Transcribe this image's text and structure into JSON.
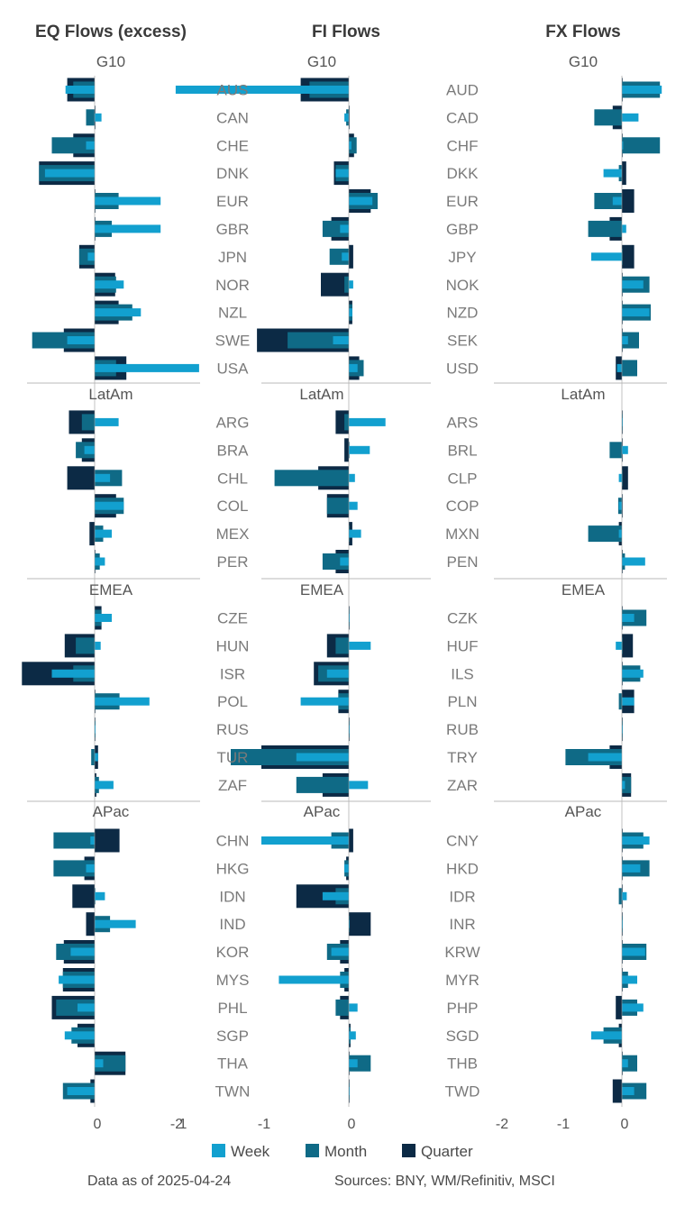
{
  "colors": {
    "week": "#12a0cf",
    "month": "#0f6a86",
    "quarter": "#0c2a45",
    "sep": "#b8b8b8",
    "text": "#555555"
  },
  "panels": [
    {
      "title": "EQ Flows (excess)",
      "xlim": [
        -0.85,
        1.2
      ],
      "ticks": [
        0,
        1
      ]
    },
    {
      "title": "FI Flows",
      "xlim": [
        -2.0,
        0.4
      ],
      "ticks": [
        -2,
        -1,
        0
      ]
    },
    {
      "title": "FX Flows",
      "xlim": [
        -2.0,
        0.65
      ],
      "ticks": [
        -2,
        -1,
        0
      ]
    }
  ],
  "sections": [
    {
      "name": "G10",
      "eq_labels": [
        "AUS",
        "CAN",
        "CHE",
        "DNK",
        "EUR",
        "GBR",
        "JPN",
        "NOR",
        "NZL",
        "SWE",
        "USA"
      ],
      "fx_labels": [
        "AUD",
        "CAD",
        "CHF",
        "DKK",
        "EUR",
        "GBP",
        "JPY",
        "NOK",
        "NZD",
        "SEK",
        "USD"
      ]
    },
    {
      "name": "LatAm",
      "eq_labels": [
        "ARG",
        "BRA",
        "CHL",
        "COL",
        "MEX",
        "PER"
      ],
      "fx_labels": [
        "ARS",
        "BRL",
        "CLP",
        "COP",
        "MXN",
        "PEN"
      ]
    },
    {
      "name": "EMEA",
      "eq_labels": [
        "CZE",
        "HUN",
        "ISR",
        "POL",
        "RUS",
        "TUR",
        "ZAF"
      ],
      "fx_labels": [
        "CZK",
        "HUF",
        "ILS",
        "PLN",
        "RUB",
        "TRY",
        "ZAR"
      ]
    },
    {
      "name": "APac",
      "eq_labels": [
        "CHN",
        "HKG",
        "IDN",
        "IND",
        "KOR",
        "MYS",
        "PHL",
        "SGP",
        "THA",
        "TWN"
      ],
      "fx_labels": [
        "CNY",
        "HKD",
        "IDR",
        "INR",
        "KRW",
        "MYR",
        "PHP",
        "SGD",
        "THB",
        "TWD"
      ]
    }
  ],
  "legend": [
    {
      "key": "week",
      "label": "Week"
    },
    {
      "key": "month",
      "label": "Month"
    },
    {
      "key": "quarter",
      "label": "Quarter"
    }
  ],
  "footer": {
    "date": "Data as of 2025-04-24",
    "sources": "Sources:  BNY, WM/Refinitiv, MSCI"
  },
  "chart_data": [
    {
      "type": "bar",
      "orientation": "horizontal",
      "title": "EQ Flows (excess)",
      "xlim": [
        -0.85,
        1.2
      ],
      "series_names": [
        "Week",
        "Month",
        "Quarter"
      ],
      "groups": [
        {
          "name": "G10",
          "rows": [
            {
              "label": "AUS",
              "week": -0.34,
              "month": -0.25,
              "quarter": -0.32
            },
            {
              "label": "CAN",
              "week": 0.08,
              "month": -0.1,
              "quarter": 0.0
            },
            {
              "label": "CHE",
              "week": -0.1,
              "month": -0.5,
              "quarter": -0.25
            },
            {
              "label": "DNK",
              "week": -0.58,
              "month": -0.65,
              "quarter": -0.65
            },
            {
              "label": "EUR",
              "week": 0.77,
              "month": 0.28,
              "quarter": 0.0
            },
            {
              "label": "GBR",
              "week": 0.77,
              "month": 0.2,
              "quarter": 0.0
            },
            {
              "label": "JPN",
              "week": -0.08,
              "month": -0.18,
              "quarter": -0.18
            },
            {
              "label": "NOR",
              "week": 0.34,
              "month": 0.25,
              "quarter": 0.24
            },
            {
              "label": "NZL",
              "week": 0.54,
              "month": 0.44,
              "quarter": 0.28
            },
            {
              "label": "SWE",
              "week": -0.32,
              "month": -0.73,
              "quarter": -0.36
            },
            {
              "label": "USA",
              "week": 1.22,
              "month": 0.25,
              "quarter": 0.37
            }
          ]
        },
        {
          "name": "LatAm",
          "rows": [
            {
              "label": "ARG",
              "week": 0.28,
              "month": -0.15,
              "quarter": -0.3
            },
            {
              "label": "BRA",
              "week": -0.12,
              "month": -0.22,
              "quarter": -0.15
            },
            {
              "label": "CHL",
              "week": 0.18,
              "month": 0.32,
              "quarter": -0.32
            },
            {
              "label": "COL",
              "week": 0.34,
              "month": 0.34,
              "quarter": 0.25
            },
            {
              "label": "MEX",
              "week": 0.2,
              "month": 0.1,
              "quarter": -0.06
            },
            {
              "label": "PER",
              "week": 0.12,
              "month": 0.06,
              "quarter": 0.0
            }
          ]
        },
        {
          "name": "EMEA",
          "rows": [
            {
              "label": "CZE",
              "week": 0.2,
              "month": 0.08,
              "quarter": 0.08
            },
            {
              "label": "HUN",
              "week": 0.07,
              "month": -0.22,
              "quarter": -0.35
            },
            {
              "label": "ISR",
              "week": -0.5,
              "month": -0.25,
              "quarter": -0.85
            },
            {
              "label": "POL",
              "week": 0.64,
              "month": 0.29,
              "quarter": 0.0
            },
            {
              "label": "RUS",
              "week": 0.01,
              "month": 0.01,
              "quarter": 0.0
            },
            {
              "label": "TUR",
              "week": 0.04,
              "month": -0.04,
              "quarter": 0.04
            },
            {
              "label": "ZAF",
              "week": 0.22,
              "month": 0.05,
              "quarter": 0.02
            }
          ]
        },
        {
          "name": "APac",
          "rows": [
            {
              "label": "CHN",
              "week": -0.05,
              "month": -0.48,
              "quarter": 0.29
            },
            {
              "label": "HKG",
              "week": -0.1,
              "month": -0.48,
              "quarter": -0.12
            },
            {
              "label": "IDN",
              "week": 0.12,
              "month": 0.0,
              "quarter": -0.26
            },
            {
              "label": "IND",
              "week": 0.48,
              "month": 0.18,
              "quarter": -0.1
            },
            {
              "label": "KOR",
              "week": -0.28,
              "month": -0.45,
              "quarter": -0.36
            },
            {
              "label": "MYS",
              "week": -0.42,
              "month": -0.37,
              "quarter": -0.37
            },
            {
              "label": "PHL",
              "week": -0.2,
              "month": -0.45,
              "quarter": -0.5
            },
            {
              "label": "SGP",
              "week": -0.35,
              "month": -0.27,
              "quarter": -0.2
            },
            {
              "label": "THA",
              "week": 0.1,
              "month": 0.36,
              "quarter": 0.36
            },
            {
              "label": "TWN",
              "week": -0.32,
              "month": -0.37,
              "quarter": -0.05
            }
          ]
        }
      ]
    },
    {
      "type": "bar",
      "orientation": "horizontal",
      "title": "FI Flows",
      "xlim": [
        -2.0,
        0.4
      ],
      "series_names": [
        "Week",
        "Month",
        "Quarter"
      ],
      "groups": [
        {
          "name": "G10",
          "rows": [
            {
              "label": "AUS",
              "week": -1.98,
              "month": -0.45,
              "quarter": -0.55
            },
            {
              "label": "CAN",
              "week": -0.05,
              "month": -0.03,
              "quarter": 0.0
            },
            {
              "label": "CHE",
              "week": 0.03,
              "month": 0.09,
              "quarter": 0.06
            },
            {
              "label": "DNK",
              "week": -0.15,
              "month": -0.15,
              "quarter": -0.17
            },
            {
              "label": "EUR",
              "week": 0.27,
              "month": 0.33,
              "quarter": 0.25
            },
            {
              "label": "GBR",
              "week": -0.1,
              "month": -0.3,
              "quarter": -0.2
            },
            {
              "label": "JPN",
              "week": -0.08,
              "month": -0.22,
              "quarter": 0.05
            },
            {
              "label": "NOR",
              "week": 0.05,
              "month": -0.05,
              "quarter": -0.32
            },
            {
              "label": "NZL",
              "week": 0.04,
              "month": 0.04,
              "quarter": 0.04
            },
            {
              "label": "SWE",
              "week": -0.18,
              "month": -0.7,
              "quarter": -1.05
            },
            {
              "label": "USA",
              "week": 0.1,
              "month": 0.17,
              "quarter": 0.12
            }
          ]
        },
        {
          "name": "LatAm",
          "rows": [
            {
              "label": "ARG",
              "week": 0.42,
              "month": -0.05,
              "quarter": -0.15
            },
            {
              "label": "BRA",
              "week": 0.24,
              "month": 0.0,
              "quarter": -0.05
            },
            {
              "label": "CHL",
              "week": 0.07,
              "month": -0.85,
              "quarter": -0.35
            },
            {
              "label": "COL",
              "week": 0.1,
              "month": -0.25,
              "quarter": -0.25
            },
            {
              "label": "MEX",
              "week": 0.14,
              "month": 0.0,
              "quarter": 0.04
            },
            {
              "label": "PER",
              "week": -0.1,
              "month": -0.3,
              "quarter": -0.15
            }
          ]
        },
        {
          "name": "EMEA",
          "rows": [
            {
              "label": "CZE",
              "week": 0.0,
              "month": 0.0,
              "quarter": 0.0
            },
            {
              "label": "HUN",
              "week": 0.25,
              "month": -0.15,
              "quarter": -0.25
            },
            {
              "label": "ISR",
              "week": -0.25,
              "month": -0.35,
              "quarter": -0.4
            },
            {
              "label": "POL",
              "week": -0.55,
              "month": -0.12,
              "quarter": -0.12
            },
            {
              "label": "RUS",
              "week": 0.0,
              "month": 0.0,
              "quarter": 0.0
            },
            {
              "label": "TUR",
              "week": -0.6,
              "month": -1.35,
              "quarter": -1.0
            },
            {
              "label": "ZAF",
              "week": 0.22,
              "month": -0.6,
              "quarter": -0.3
            }
          ]
        },
        {
          "name": "APac",
          "rows": [
            {
              "label": "CHN",
              "week": -1.0,
              "month": -0.2,
              "quarter": 0.05
            },
            {
              "label": "HKG",
              "week": -0.05,
              "month": -0.05,
              "quarter": -0.03
            },
            {
              "label": "IDN",
              "week": -0.3,
              "month": -0.15,
              "quarter": -0.6
            },
            {
              "label": "IND",
              "week": 0.0,
              "month": 0.0,
              "quarter": 0.25
            },
            {
              "label": "KOR",
              "week": -0.2,
              "month": -0.25,
              "quarter": -0.1
            },
            {
              "label": "MYS",
              "week": -0.8,
              "month": -0.1,
              "quarter": -0.05
            },
            {
              "label": "PHL",
              "week": 0.1,
              "month": -0.15,
              "quarter": -0.1
            },
            {
              "label": "SGP",
              "week": 0.08,
              "month": 0.02,
              "quarter": 0.02
            },
            {
              "label": "THA",
              "week": 0.1,
              "month": 0.25,
              "quarter": 0.0
            },
            {
              "label": "TWN",
              "week": 0.0,
              "month": 0.0,
              "quarter": 0.0
            }
          ]
        }
      ]
    },
    {
      "type": "bar",
      "orientation": "horizontal",
      "title": "FX Flows",
      "xlim": [
        -2.0,
        0.65
      ],
      "series_names": [
        "Week",
        "Month",
        "Quarter"
      ],
      "groups": [
        {
          "name": "G10",
          "rows": [
            {
              "label": "AUD",
              "week": 0.65,
              "month": 0.62,
              "quarter": 0.0
            },
            {
              "label": "CAD",
              "week": 0.27,
              "month": -0.45,
              "quarter": -0.15
            },
            {
              "label": "CHF",
              "week": 0.02,
              "month": 0.62,
              "quarter": 0.0
            },
            {
              "label": "DKK",
              "week": -0.3,
              "month": -0.05,
              "quarter": 0.07
            },
            {
              "label": "EUR",
              "week": -0.15,
              "month": -0.45,
              "quarter": 0.2
            },
            {
              "label": "GBP",
              "week": 0.07,
              "month": -0.55,
              "quarter": -0.2
            },
            {
              "label": "JPY",
              "week": -0.5,
              "month": 0.0,
              "quarter": 0.2
            },
            {
              "label": "NOK",
              "week": 0.35,
              "month": 0.45,
              "quarter": 0.0
            },
            {
              "label": "NZD",
              "week": 0.45,
              "month": 0.47,
              "quarter": 0.0
            },
            {
              "label": "SEK",
              "week": 0.1,
              "month": 0.28,
              "quarter": 0.0
            },
            {
              "label": "USD",
              "week": -0.08,
              "month": 0.25,
              "quarter": -0.1
            }
          ]
        },
        {
          "name": "LatAm",
          "rows": [
            {
              "label": "ARS",
              "week": 0.0,
              "month": 0.0,
              "quarter": 0.0
            },
            {
              "label": "BRL",
              "week": 0.1,
              "month": -0.2,
              "quarter": 0.0
            },
            {
              "label": "CLP",
              "week": -0.05,
              "month": 0.0,
              "quarter": 0.1
            },
            {
              "label": "COP",
              "week": -0.05,
              "month": -0.06,
              "quarter": 0.0
            },
            {
              "label": "MXN",
              "week": -0.05,
              "month": -0.55,
              "quarter": -0.05
            },
            {
              "label": "PEN",
              "week": 0.38,
              "month": 0.05,
              "quarter": 0.0
            }
          ]
        },
        {
          "name": "EMEA",
          "rows": [
            {
              "label": "CZK",
              "week": 0.2,
              "month": 0.4,
              "quarter": 0.0
            },
            {
              "label": "HUF",
              "week": -0.1,
              "month": 0.0,
              "quarter": 0.18
            },
            {
              "label": "ILS",
              "week": 0.35,
              "month": 0.3,
              "quarter": 0.0
            },
            {
              "label": "PLN",
              "week": 0.2,
              "month": -0.05,
              "quarter": 0.2
            },
            {
              "label": "RUB",
              "week": 0.0,
              "month": 0.0,
              "quarter": 0.0
            },
            {
              "label": "TRY",
              "week": -0.55,
              "month": -0.92,
              "quarter": -0.2
            },
            {
              "label": "ZAR",
              "week": 0.05,
              "month": 0.15,
              "quarter": 0.15
            }
          ]
        },
        {
          "name": "APac",
          "rows": [
            {
              "label": "CNY",
              "week": 0.45,
              "month": 0.35,
              "quarter": 0.0
            },
            {
              "label": "HKD",
              "week": 0.3,
              "month": 0.45,
              "quarter": 0.0
            },
            {
              "label": "IDR",
              "week": 0.08,
              "month": -0.05,
              "quarter": 0.0
            },
            {
              "label": "INR",
              "week": 0.0,
              "month": 0.0,
              "quarter": 0.0
            },
            {
              "label": "KRW",
              "week": 0.38,
              "month": 0.4,
              "quarter": 0.0
            },
            {
              "label": "MYR",
              "week": 0.25,
              "month": 0.1,
              "quarter": 0.0
            },
            {
              "label": "PHP",
              "week": 0.35,
              "month": 0.25,
              "quarter": -0.1
            },
            {
              "label": "SGD",
              "week": -0.5,
              "month": -0.3,
              "quarter": -0.05
            },
            {
              "label": "THB",
              "week": 0.1,
              "month": 0.25,
              "quarter": 0.0
            },
            {
              "label": "TWD",
              "week": 0.2,
              "month": 0.4,
              "quarter": -0.15
            }
          ]
        }
      ]
    }
  ]
}
